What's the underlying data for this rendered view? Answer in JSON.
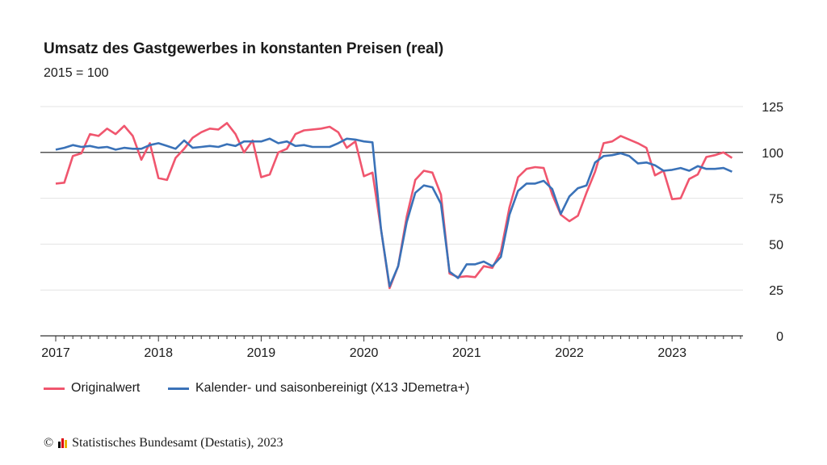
{
  "chart_data": {
    "type": "line",
    "title": "Umsatz des Gastgewerbes in konstanten Preisen (real)",
    "subtitle": "2015 = 100",
    "xlabel": "",
    "ylabel": "",
    "x_start": "2017-01",
    "x_frequency": "monthly",
    "x_tick_labels": [
      "2017",
      "2018",
      "2019",
      "2020",
      "2021",
      "2022",
      "2023"
    ],
    "ylim": [
      0,
      125
    ],
    "y_ticks": [
      0,
      25,
      50,
      75,
      100,
      125
    ],
    "reference_line": 100,
    "grid": true,
    "legend_position": "bottom",
    "series": [
      {
        "name": "Originalwert",
        "color": "#f0566e",
        "values": [
          83,
          83.5,
          98,
          99.5,
          110,
          109,
          113,
          110,
          114.5,
          109,
          96,
          105,
          86,
          85,
          97,
          102,
          108,
          111,
          113,
          112.5,
          116,
          110,
          100,
          106.5,
          86.5,
          88,
          100,
          102,
          110,
          112,
          112.5,
          113,
          114,
          111,
          102.5,
          106,
          87,
          89,
          58,
          26,
          38,
          65,
          85,
          90,
          89,
          77,
          34,
          32,
          32.5,
          32,
          38,
          37,
          46,
          70,
          86.5,
          91,
          92,
          91.5,
          77,
          66,
          62.5,
          65.5,
          78,
          89.5,
          105,
          106,
          109,
          107,
          105,
          102.5,
          87.5,
          90,
          74.5,
          75,
          85.5,
          88,
          97.5,
          98.5,
          100,
          97
        ]
      },
      {
        "name": "Kalender- und saisonbereinigt (X13 JDemetra+)",
        "color": "#3a72b8",
        "values": [
          101.5,
          102.5,
          104,
          103,
          103.5,
          102.5,
          103,
          101.5,
          102.5,
          102,
          102,
          104,
          105,
          103.5,
          102,
          106.5,
          102.5,
          103,
          103.5,
          103,
          104.5,
          103.5,
          106,
          106,
          106,
          107.5,
          105,
          106,
          103.5,
          104,
          103,
          103,
          103,
          105,
          107.5,
          107,
          106,
          105.5,
          58,
          27,
          38,
          62,
          78,
          82,
          81,
          72,
          35,
          31.5,
          39,
          39,
          40.5,
          38,
          43,
          66,
          79,
          83,
          83,
          84.5,
          80,
          66.5,
          76,
          80.5,
          82,
          94.5,
          98,
          98.5,
          99.5,
          98,
          94,
          94.5,
          93,
          90,
          90.5,
          91.5,
          90,
          92.5,
          91,
          91,
          91.5,
          89.5
        ]
      }
    ]
  },
  "footer": {
    "copyright": "©",
    "source": "Statistisches Bundesamt (Destatis), 2023"
  }
}
